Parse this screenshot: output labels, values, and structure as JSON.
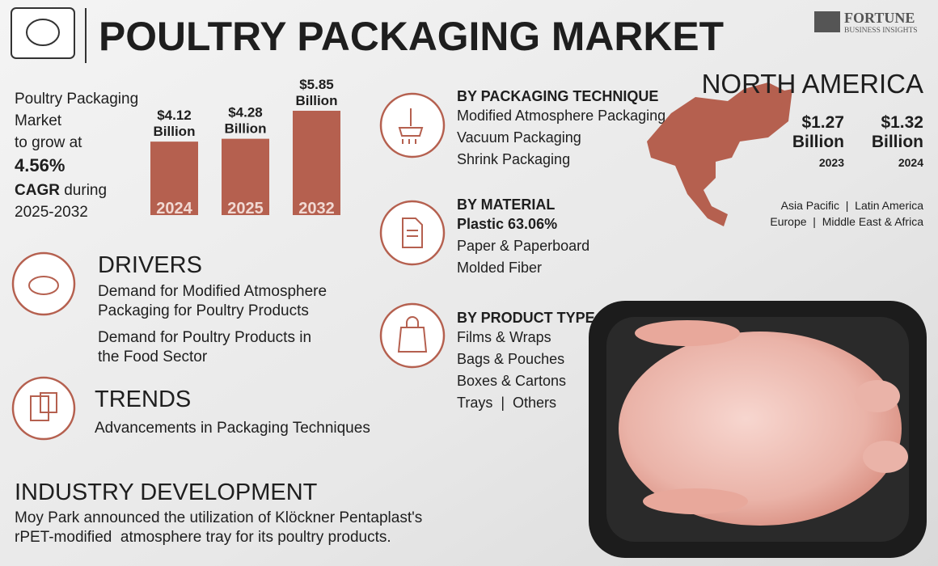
{
  "header": {
    "title": "POULTRY PACKAGING MARKET",
    "brand": "FORTUNE",
    "brand_sub": "BUSINESS INSIGHTS"
  },
  "summary": {
    "lines": [
      "Poultry Packaging",
      "Market",
      "to grow at"
    ],
    "cagr": "4.56%",
    "cagr_label": "CAGR",
    "during": "during",
    "period": "2025-2032"
  },
  "bars": {
    "categories": [
      "2024",
      "2025",
      "2032"
    ],
    "values": [
      4.12,
      4.28,
      5.85
    ],
    "value_labels": [
      "$4.12",
      "$4.28",
      "$5.85"
    ],
    "unit": "Billion",
    "color": "#b5604f"
  },
  "drivers": {
    "title": "DRIVERS",
    "items": [
      [
        "Demand for Modified Atmosphere",
        "Packaging for Poultry Products"
      ],
      [
        "Demand for Poultry Products in",
        "the Food Sector"
      ]
    ]
  },
  "trends": {
    "title": "TRENDS",
    "items": [
      "Advancements in Packaging Techniques"
    ]
  },
  "industry_development": {
    "title": "INDUSTRY DEVELOPMENT",
    "lines": [
      "Moy Park announced the utilization of Klöckner Pentaplast's",
      "rPET-modified  atmosphere tray for its poultry products."
    ]
  },
  "segments": [
    {
      "title": "BY PACKAGING TECHNIQUE",
      "items": [
        "Modified Atmosphere Packaging",
        "Vacuum Packaging",
        "Shrink Packaging"
      ]
    },
    {
      "title": "BY MATERIAL",
      "items": [
        "Plastic 63.06%",
        "Paper & Paperboard",
        "Molded Fiber"
      ]
    },
    {
      "title": "BY PRODUCT TYPE",
      "items": [
        "Films & Wraps",
        "Bags & Pouches",
        "Boxes & Cartons",
        "Trays  |  Others"
      ]
    }
  ],
  "region": {
    "name": "NORTH AMERICA",
    "figures": [
      {
        "value": "$1.27",
        "unit": "Billion",
        "year": "2023"
      },
      {
        "value": "$1.32",
        "unit": "Billion",
        "year": "2024"
      }
    ],
    "others": [
      "Asia Pacific  |  Latin America",
      "Europe  |  Middle East & Africa"
    ]
  }
}
